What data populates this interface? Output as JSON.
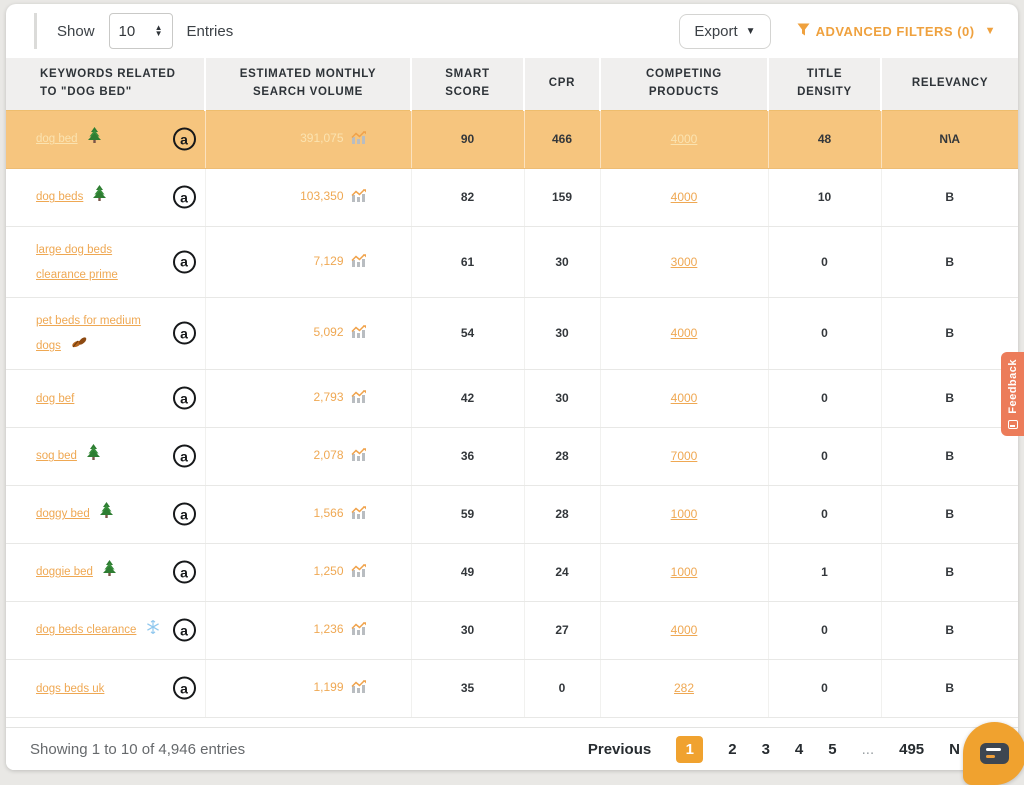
{
  "toolbar": {
    "show_label": "Show",
    "page_size": "10",
    "entries_label": "Entries",
    "export_label": "Export",
    "advanced_filters_label": "ADVANCED FILTERS (0)"
  },
  "table": {
    "columns": [
      "KEYWORDS RELATED TO \"DOG BED\"",
      "ESTIMATED MONTHLY SEARCH VOLUME",
      "SMART SCORE",
      "CPR",
      "COMPETING PRODUCTS",
      "TITLE DENSITY",
      "RELEVANCY"
    ],
    "rows": [
      {
        "keyword": "dog bed",
        "icon": "christmas-tree",
        "volume": "391,075",
        "smart_score": "90",
        "cpr": "466",
        "competing": "4000",
        "title_density": "48",
        "relevancy": "N\\A",
        "highlighted": true
      },
      {
        "keyword": "dog beds",
        "icon": "christmas-tree",
        "volume": "103,350",
        "smart_score": "82",
        "cpr": "159",
        "competing": "4000",
        "title_density": "10",
        "relevancy": "B",
        "highlighted": false
      },
      {
        "keyword": "large dog beds clearance prime",
        "icon": null,
        "volume": "7,129",
        "smart_score": "61",
        "cpr": "30",
        "competing": "3000",
        "title_density": "0",
        "relevancy": "B",
        "highlighted": false
      },
      {
        "keyword": "pet beds for medium dogs",
        "icon": "fallen-leaf",
        "volume": "5,092",
        "smart_score": "54",
        "cpr": "30",
        "competing": "4000",
        "title_density": "0",
        "relevancy": "B",
        "highlighted": false
      },
      {
        "keyword": "dog bef",
        "icon": null,
        "volume": "2,793",
        "smart_score": "42",
        "cpr": "30",
        "competing": "4000",
        "title_density": "0",
        "relevancy": "B",
        "highlighted": false
      },
      {
        "keyword": "sog bed",
        "icon": "christmas-tree",
        "volume": "2,078",
        "smart_score": "36",
        "cpr": "28",
        "competing": "7000",
        "title_density": "0",
        "relevancy": "B",
        "highlighted": false
      },
      {
        "keyword": "doggy bed",
        "icon": "christmas-tree",
        "volume": "1,566",
        "smart_score": "59",
        "cpr": "28",
        "competing": "1000",
        "title_density": "0",
        "relevancy": "B",
        "highlighted": false
      },
      {
        "keyword": "doggie bed",
        "icon": "christmas-tree",
        "volume": "1,250",
        "smart_score": "49",
        "cpr": "24",
        "competing": "1000",
        "title_density": "1",
        "relevancy": "B",
        "highlighted": false
      },
      {
        "keyword": "dog beds clearance",
        "icon": "snowflake",
        "volume": "1,236",
        "smart_score": "30",
        "cpr": "27",
        "competing": "4000",
        "title_density": "0",
        "relevancy": "B",
        "highlighted": false
      },
      {
        "keyword": "dogs beds uk",
        "icon": null,
        "volume": "1,199",
        "smart_score": "35",
        "cpr": "0",
        "competing": "282",
        "title_density": "0",
        "relevancy": "B",
        "highlighted": false
      }
    ]
  },
  "footer": {
    "showing_text": "Showing 1 to 10 of 4,946 entries",
    "previous_label": "Previous",
    "pages": [
      "1",
      "2",
      "3",
      "4",
      "5"
    ],
    "active_page": "1",
    "ellipsis": "...",
    "last_page": "495",
    "next_label": "N"
  },
  "feedback_tab": {
    "label": "Feedback"
  },
  "colors": {
    "accent_orange": "#F0A22F",
    "link_orange": "#EFA853",
    "highlight_row": "#F6C57E",
    "highlight_link": "#FBE3B0",
    "filters_orange": "#EFA13E",
    "header_bg": "#F0EFEE",
    "dark_text": "#33373B",
    "feedback_coral": "#EC7C5A",
    "chat_bubble": "#F0A22F"
  }
}
